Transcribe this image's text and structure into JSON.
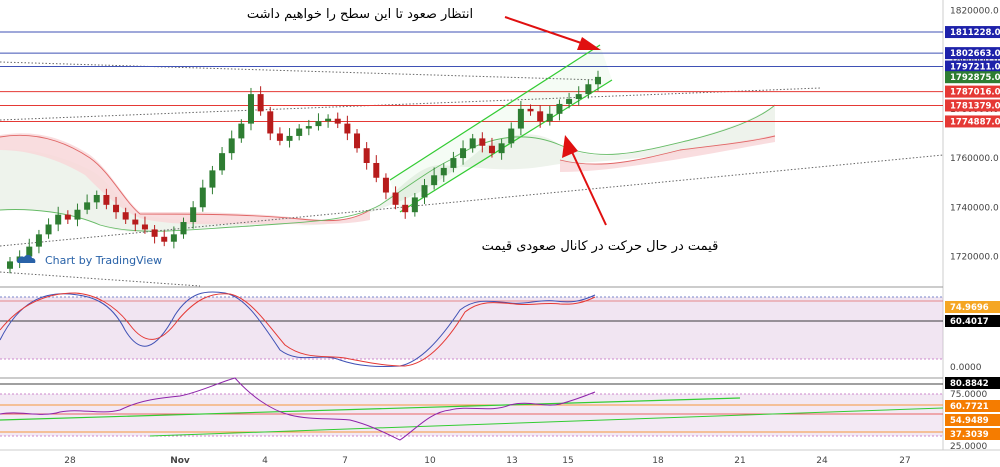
{
  "chart_data": [
    {
      "type": "candlestick",
      "title": "",
      "x_ticks": [
        "28",
        "Nov",
        "4",
        "7",
        "10",
        "13",
        "15",
        "18",
        "21",
        "24",
        "27"
      ],
      "y_ticks": [
        "1820000.0",
        "1800000.0",
        "1780000.0",
        "1760000.0",
        "1740000.0",
        "1720000.0"
      ],
      "ylim": [
        1708000,
        1821000
      ],
      "price_labels": [
        {
          "value": "1811228.0",
          "color": "#1e22aa"
        },
        {
          "value": "1802663.0",
          "color": "#1e22aa"
        },
        {
          "value": "1797211.0",
          "color": "#1e22aa"
        },
        {
          "value": "1792875.0",
          "color": "#2e7d32"
        },
        {
          "value": "1787016.0",
          "color": "#e53935"
        },
        {
          "value": "1781379.0",
          "color": "#e53935"
        },
        {
          "value": "1774887.0",
          "color": "#e53935"
        }
      ],
      "horizontal_levels": [
        {
          "value": 1811228,
          "color": "#3f51b5"
        },
        {
          "value": 1802663,
          "color": "#3f51b5"
        },
        {
          "value": 1797211,
          "color": "#3f51b5"
        },
        {
          "value": 1787016,
          "color": "#e53935"
        },
        {
          "value": 1781379,
          "color": "#e53935"
        },
        {
          "value": 1774887,
          "color": "#e53935"
        }
      ],
      "closes": [
        1718000,
        1720000,
        1724000,
        1729000,
        1733000,
        1737000,
        1735000,
        1739000,
        1742000,
        1745000,
        1741000,
        1738000,
        1735000,
        1733000,
        1731000,
        1728000,
        1726000,
        1729000,
        1734000,
        1740000,
        1748000,
        1755000,
        1762000,
        1768000,
        1774000,
        1786000,
        1779000,
        1770000,
        1767000,
        1769000,
        1772000,
        1773000,
        1775000,
        1776000,
        1774000,
        1770000,
        1764000,
        1758000,
        1752000,
        1746000,
        1741000,
        1738000,
        1744000,
        1749000,
        1753000,
        1756000,
        1760000,
        1764000,
        1768000,
        1765000,
        1762000,
        1766000,
        1772000,
        1780000,
        1779000,
        1775000,
        1778000,
        1782000,
        1784000,
        1786000,
        1790000,
        1793000
      ],
      "annotations": [
        "انتظار صعود تا این سطح را خواهیم داشت",
        "قیمت در حال حرکت در کانال صعودی قیمت"
      ],
      "watermark": "Chart by TradingView"
    },
    {
      "type": "line",
      "title": "",
      "y_ticks": [
        "0.0000"
      ],
      "value_labels": [
        {
          "value": "74.9696",
          "color": "#f5a623"
        },
        {
          "value": "60.4017",
          "color": "#000000"
        }
      ]
    },
    {
      "type": "line",
      "title": "",
      "y_ticks": [
        "25.0000",
        "75.0000"
      ],
      "value_labels": [
        {
          "value": "80.8842",
          "color": "#000000"
        },
        {
          "value": "60.7721",
          "color": "#f57c00"
        },
        {
          "value": "54.9489",
          "color": "#f57c00"
        },
        {
          "value": "37.3039",
          "color": "#f57c00"
        }
      ]
    }
  ]
}
